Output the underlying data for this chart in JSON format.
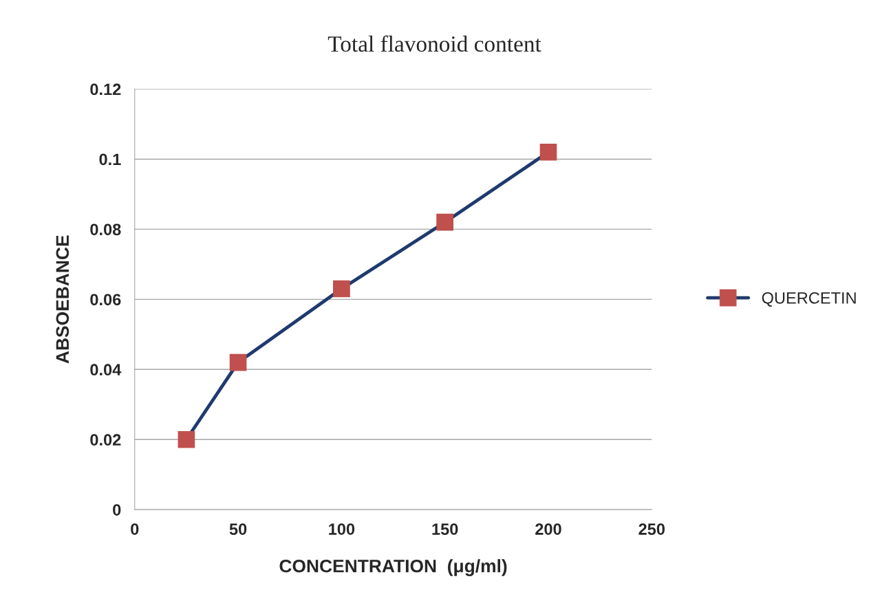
{
  "chart_data": {
    "type": "line",
    "title": "Total flavonoid content",
    "xlabel": "CONCENTRATION  (μg/ml)",
    "ylabel": "ABSOEBANCE",
    "x": [
      25,
      50,
      100,
      150,
      200
    ],
    "series": [
      {
        "name": "QUERCETIN",
        "color": "#1f3a6e",
        "colors": [
          "#c0504d",
          "#c0504d",
          "#c0504d",
          "#c0504d",
          "#c0504d"
        ],
        "values": [
          0.02,
          0.042,
          0.063,
          0.082,
          0.102
        ]
      }
    ],
    "xlim": [
      0,
      250
    ],
    "xticks": [
      0,
      50,
      100,
      150,
      200,
      250
    ],
    "ylim": [
      0,
      0.12
    ],
    "yticks": [
      0,
      0.02,
      0.04,
      0.06,
      0.08,
      0.1,
      0.12
    ],
    "grid": "y",
    "legend": "right",
    "marker": "square",
    "line_style": "solid"
  }
}
